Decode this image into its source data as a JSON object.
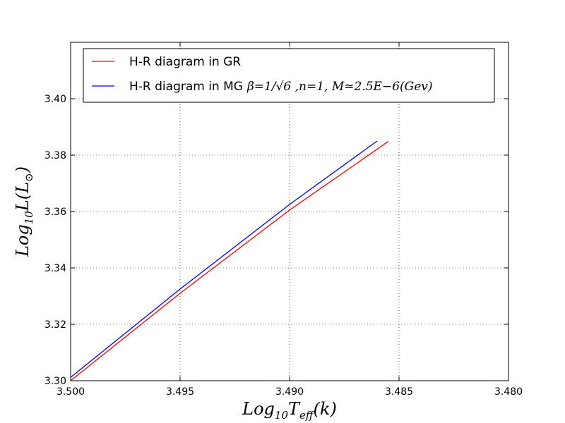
{
  "chart_data": {
    "type": "line",
    "xlabel_parts": {
      "base": "Log",
      "sub1": "10",
      "mid": "T",
      "sub2": "eff",
      "tail": "(k)"
    },
    "ylabel_parts": {
      "base": "Log",
      "sub1": "10",
      "mid": "L(L",
      "sub2": "⊙",
      "tail": ")"
    },
    "xlim": [
      3.5,
      3.48
    ],
    "ylim": [
      3.3,
      3.42
    ],
    "x_reversed": true,
    "grid": true,
    "legend_placement": "top",
    "xticks": [
      "3.500",
      "3.495",
      "3.490",
      "3.485",
      "3.480"
    ],
    "yticks": [
      "3.30",
      "3.32",
      "3.34",
      "3.36",
      "3.38",
      "3.40"
    ],
    "series": [
      {
        "name": "H-R diagram in GR",
        "color": "#ff0000",
        "x": [
          3.5,
          3.495,
          3.49,
          3.4855
        ],
        "y": [
          3.3,
          3.331,
          3.3605,
          3.3848
        ]
      },
      {
        "name": "H-R diagram in MG",
        "name_math": "β=1/√6 ,n=1, M≃2.5E−6(Gev)",
        "color": "#0000ff",
        "x": [
          3.5,
          3.495,
          3.49,
          3.486
        ],
        "y": [
          3.3012,
          3.3325,
          3.3625,
          3.385
        ]
      }
    ]
  }
}
